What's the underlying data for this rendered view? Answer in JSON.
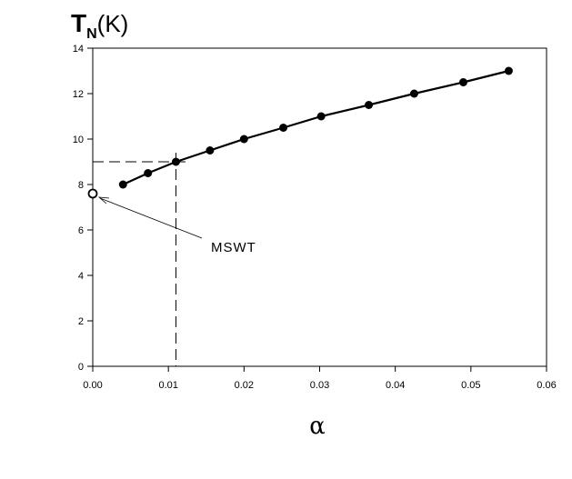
{
  "chart_data": {
    "type": "line",
    "ylabel": {
      "main": "T",
      "sub": "N",
      "unit": "(K)"
    },
    "xlabel": "α",
    "xlim": [
      0.0,
      0.06
    ],
    "ylim": [
      0,
      14
    ],
    "x_ticks": [
      "0.00",
      "0.01",
      "0.02",
      "0.03",
      "0.04",
      "0.05",
      "0.06"
    ],
    "y_ticks": [
      "0",
      "2",
      "4",
      "6",
      "8",
      "10",
      "12",
      "14"
    ],
    "grid": false,
    "series": [
      {
        "x": [
          0.004,
          0.0073,
          0.011,
          0.0155,
          0.02,
          0.0252,
          0.0302,
          0.0365,
          0.0425,
          0.049,
          0.055
        ],
        "y": [
          8.0,
          8.5,
          9.0,
          9.5,
          10.0,
          10.5,
          11.0,
          11.5,
          12.0,
          12.5,
          13.0
        ],
        "marker": "filled-circle"
      }
    ],
    "reference_point": {
      "label": "MSWT",
      "x": 0.0,
      "y": 7.6,
      "marker": "open-circle"
    },
    "guide_lines": {
      "x": 0.011,
      "y": 9.0,
      "style": "dashed"
    }
  }
}
